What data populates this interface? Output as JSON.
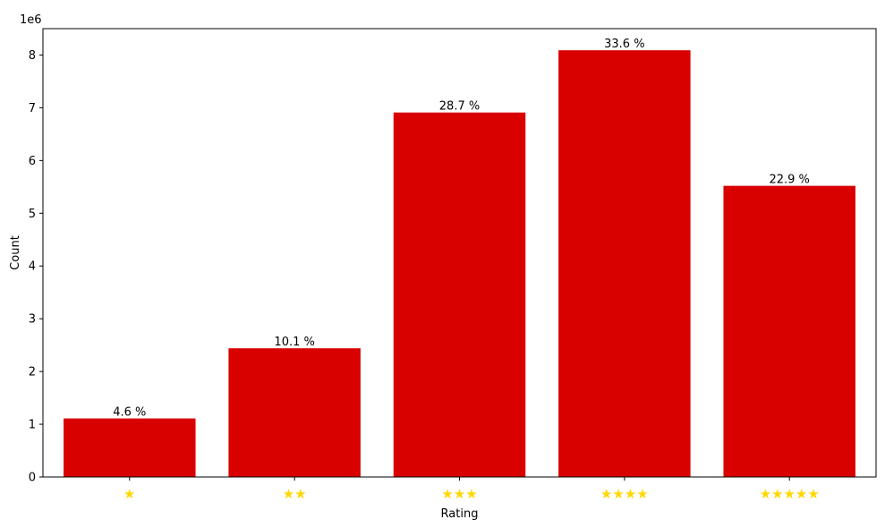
{
  "chart_data": {
    "type": "bar",
    "xlabel": "Rating",
    "ylabel": "Count",
    "offset_text": "1e6",
    "categories": [
      "★",
      "★★",
      "★★★",
      "★★★★",
      "★★★★★"
    ],
    "values": [
      1.11,
      2.44,
      6.91,
      8.09,
      5.52
    ],
    "value_unit_multiplier": 1000000,
    "bar_labels": [
      "4.6 %",
      "10.1 %",
      "28.7 %",
      "33.6 %",
      "22.9 %"
    ],
    "ylim": [
      0,
      8.5
    ],
    "yticks": [
      0,
      1,
      2,
      3,
      4,
      5,
      6,
      7,
      8
    ],
    "grid": false,
    "legend": "none",
    "colors": {
      "bar": "#d90000",
      "star": "#ffd700"
    }
  }
}
